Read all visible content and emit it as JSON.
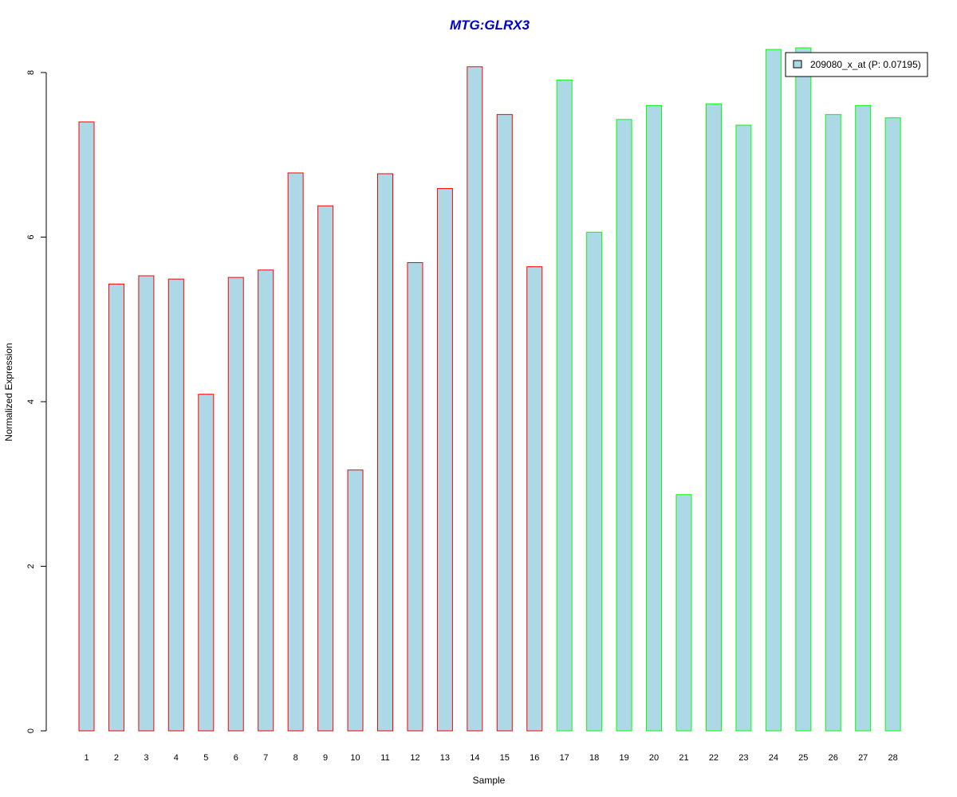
{
  "chart_data": {
    "type": "bar",
    "title": "MTG:GLRX3",
    "xlabel": "Sample",
    "ylabel": "Normalized Expression",
    "ylim": [
      0,
      8.5
    ],
    "yticks": [
      "0",
      "2",
      "4",
      "6",
      "8"
    ],
    "categories": [
      "1",
      "2",
      "3",
      "4",
      "5",
      "6",
      "7",
      "8",
      "9",
      "10",
      "11",
      "12",
      "13",
      "14",
      "15",
      "16",
      "17",
      "18",
      "19",
      "20",
      "21",
      "22",
      "23",
      "24",
      "25",
      "26",
      "27",
      "28"
    ],
    "series": [
      {
        "name": "209080_x_at (P: 0.07195)",
        "values": [
          7.4,
          5.43,
          5.53,
          5.49,
          4.09,
          5.51,
          5.6,
          6.78,
          6.38,
          3.17,
          6.77,
          5.69,
          6.59,
          8.07,
          7.49,
          5.64,
          7.91,
          6.06,
          7.43,
          7.6,
          2.87,
          7.62,
          7.36,
          8.28,
          8.3,
          7.49,
          7.6,
          7.45
        ]
      }
    ],
    "bar_fill": "#add8e6",
    "group_border_colors": [
      "#ff0000",
      "#ff0000",
      "#ff0000",
      "#ff0000",
      "#ff0000",
      "#ff0000",
      "#ff0000",
      "#ff0000",
      "#ff0000",
      "#ff0000",
      "#ff0000",
      "#ff0000",
      "#ff0000",
      "#ff0000",
      "#ff0000",
      "#ff0000",
      "#00ff00",
      "#00ff00",
      "#00ff00",
      "#00ff00",
      "#00ff00",
      "#00ff00",
      "#00ff00",
      "#00ff00",
      "#00ff00",
      "#00ff00",
      "#00ff00",
      "#00ff00"
    ],
    "title_color": "#0000cd",
    "legend": {
      "label": "209080_x_at (P: 0.07195)",
      "placement": "top-right"
    },
    "grid": false
  }
}
